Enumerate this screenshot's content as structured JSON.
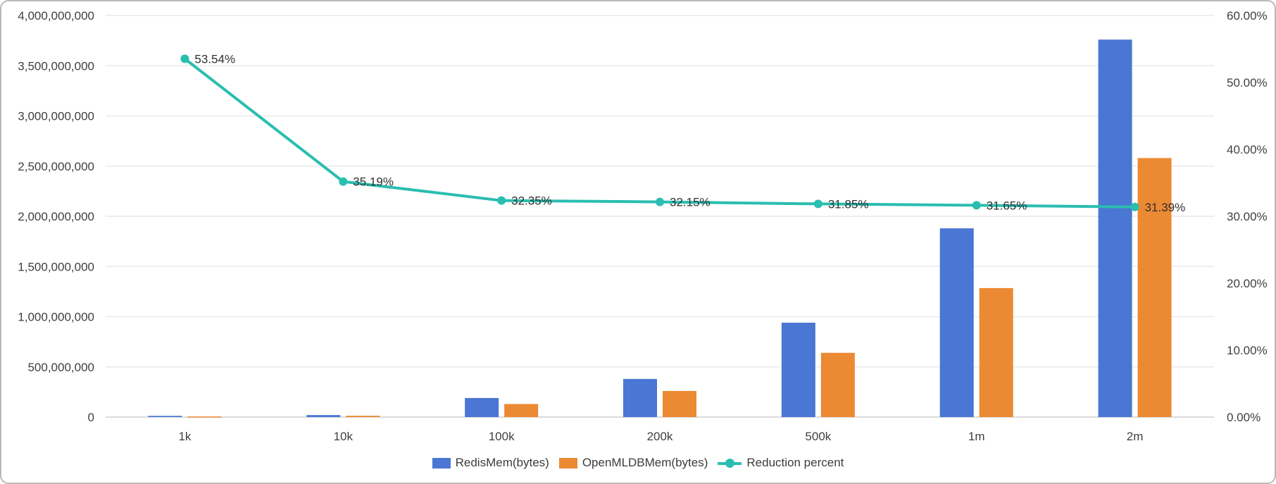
{
  "chart_data": {
    "type": "bar+line",
    "title": "",
    "xlabel": "",
    "ylabel": "",
    "categories": [
      "1k",
      "10k",
      "100k",
      "200k",
      "500k",
      "1m",
      "2m"
    ],
    "ylim": [
      0,
      4000000000
    ],
    "ytick_step": 500000000,
    "y2lim": [
      0,
      60
    ],
    "y2tick_step": 10,
    "grid": "horizontal",
    "legend_position": "bottom-center",
    "series": [
      {
        "name": "RedisMem(bytes)",
        "type": "bar",
        "axis": "left",
        "color": "#4a76d4",
        "values": [
          12000000,
          20000000,
          190000000,
          380000000,
          940000000,
          1880000000,
          3760000000
        ]
      },
      {
        "name": "OpenMLDBMem(bytes)",
        "type": "bar",
        "axis": "left",
        "color": "#ec8933",
        "values": [
          5600000,
          13000000,
          130000000,
          260000000,
          640000000,
          1285000000,
          2580000000
        ]
      },
      {
        "name": "Reduction percent",
        "type": "line",
        "axis": "right",
        "color": "#29beb0",
        "values": [
          53.54,
          35.19,
          32.35,
          32.15,
          31.85,
          31.65,
          31.39
        ],
        "labels": [
          "53.54%",
          "35.19%",
          "32.35%",
          "32.15%",
          "31.85%",
          "31.65%",
          "31.39%"
        ]
      }
    ],
    "colors": {
      "grid_line": "#e9e9e9",
      "zero_line": "#cfcfcf",
      "axis_text": "#3f3f3f",
      "point_label_text": "#303030",
      "background": "#ffffff"
    }
  }
}
